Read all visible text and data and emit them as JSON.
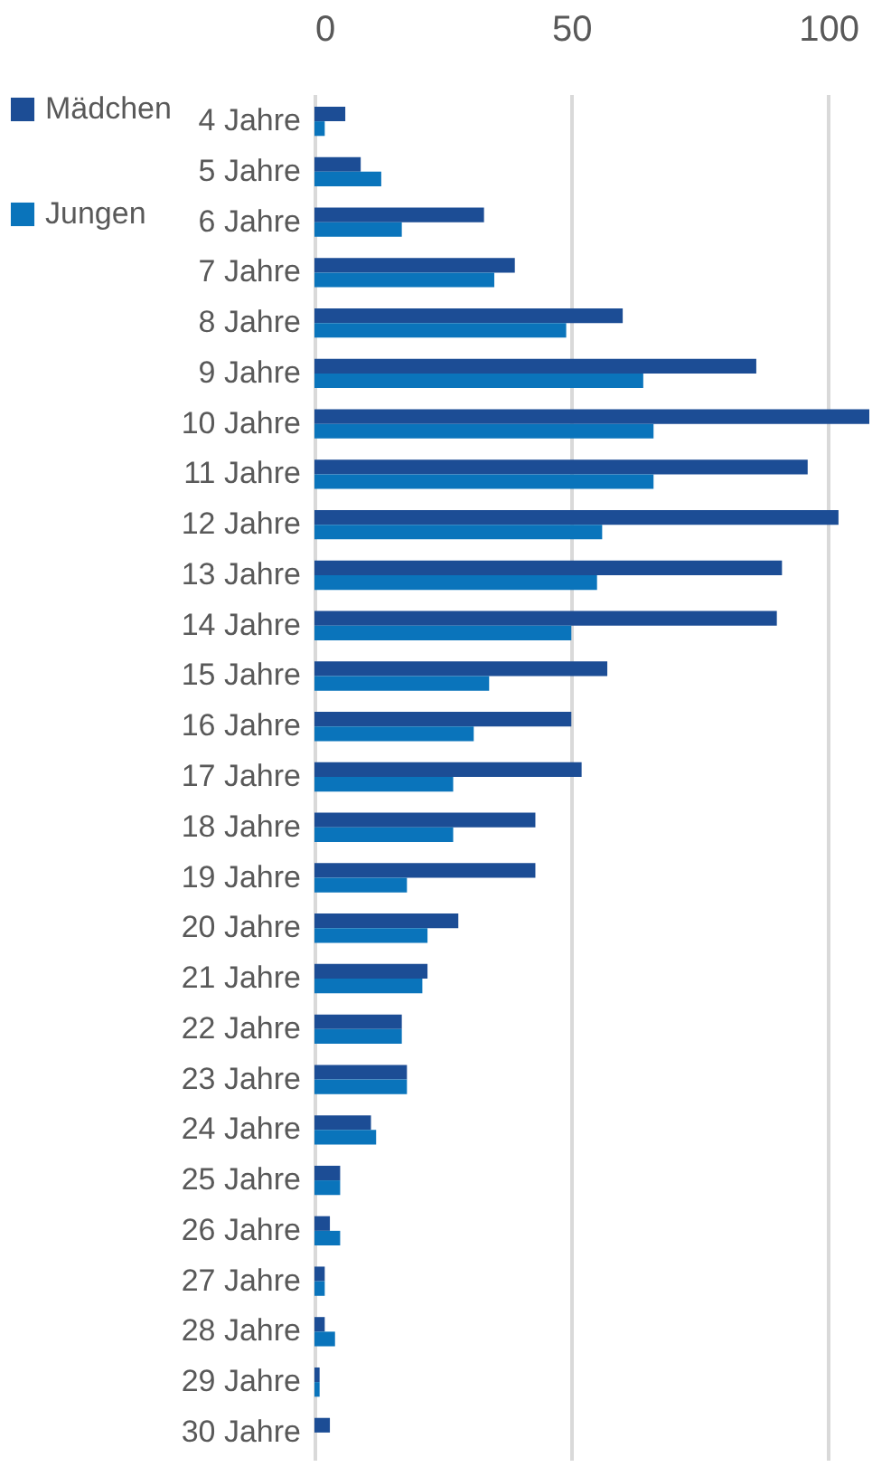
{
  "chart_data": {
    "type": "bar",
    "orientation": "horizontal",
    "categories": [
      "4 Jahre",
      "5 Jahre",
      "6 Jahre",
      "7 Jahre",
      "8 Jahre",
      "9 Jahre",
      "10 Jahre",
      "11 Jahre",
      "12 Jahre",
      "13 Jahre",
      "14 Jahre",
      "15 Jahre",
      "16 Jahre",
      "17 Jahre",
      "18 Jahre",
      "19 Jahre",
      "20 Jahre",
      "21 Jahre",
      "22 Jahre",
      "23 Jahre",
      "24 Jahre",
      "25 Jahre",
      "26 Jahre",
      "27 Jahre",
      "28 Jahre",
      "29 Jahre",
      "30 Jahre"
    ],
    "series": [
      {
        "name": "Mädchen",
        "color": "#1c4d95",
        "values": [
          6,
          9,
          33,
          39,
          60,
          86,
          108,
          96,
          102,
          91,
          90,
          57,
          50,
          52,
          43,
          43,
          28,
          22,
          17,
          18,
          11,
          5,
          3,
          2,
          2,
          1,
          3
        ]
      },
      {
        "name": "Jungen",
        "color": "#0a74bb",
        "values": [
          2,
          13,
          17,
          35,
          49,
          64,
          66,
          66,
          56,
          55,
          50,
          34,
          31,
          27,
          27,
          18,
          22,
          21,
          17,
          18,
          12,
          5,
          5,
          2,
          4,
          1,
          null
        ]
      }
    ],
    "xlim": [
      0,
      108
    ],
    "xticks": [
      0,
      50,
      100
    ],
    "grid": "x",
    "legend": "left"
  }
}
